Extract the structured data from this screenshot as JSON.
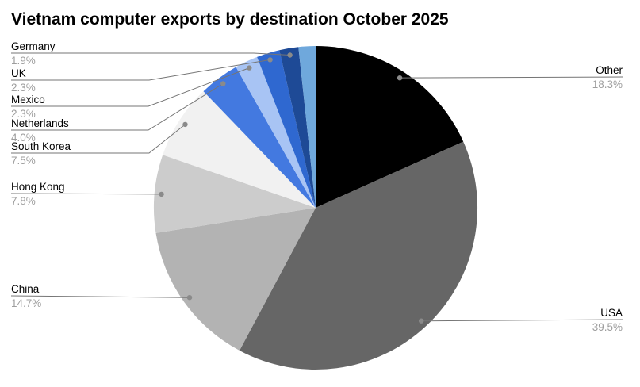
{
  "title": "Vietnam computer exports by destination October 2025",
  "chart_data": {
    "type": "pie",
    "title": "Vietnam computer exports by destination October 2025",
    "start_angle_deg": 0,
    "direction": "clockwise",
    "percent_suffix": "%",
    "legend_position": "callout-labels",
    "slices": [
      {
        "label": "Other",
        "value": 18.3,
        "display": "18.3%",
        "color": "#000000",
        "side": "right"
      },
      {
        "label": "USA",
        "value": 39.5,
        "display": "39.5%",
        "color": "#666666",
        "side": "right"
      },
      {
        "label": "China",
        "value": 14.7,
        "display": "14.7%",
        "color": "#b3b3b3",
        "side": "left"
      },
      {
        "label": "Hong Kong",
        "value": 7.8,
        "display": "7.8%",
        "color": "#cccccc",
        "side": "left"
      },
      {
        "label": "South Korea",
        "value": 7.5,
        "display": "7.5%",
        "color": "#f1f1f1",
        "side": "left"
      },
      {
        "label": "Netherlands",
        "value": 4.0,
        "display": "4.0%",
        "color": "#4379e0",
        "side": "left"
      },
      {
        "label": "Mexico",
        "value": 2.3,
        "display": "2.3%",
        "color": "#a8c4f4",
        "side": "left"
      },
      {
        "label": "UK",
        "value": 2.3,
        "display": "2.3%",
        "color": "#2f68d0",
        "side": "left"
      },
      {
        "label": "Germany",
        "value": 1.9,
        "display": "1.9%",
        "color": "#1e4a96",
        "side": "left"
      },
      {
        "label": "",
        "value": 1.7,
        "display": "",
        "color": "#6fa8dc",
        "side": "none"
      }
    ]
  },
  "colors": {
    "background": "#ffffff",
    "label_text": "#000000",
    "percent_text": "#9e9e9e",
    "leader_line": "#757575"
  }
}
